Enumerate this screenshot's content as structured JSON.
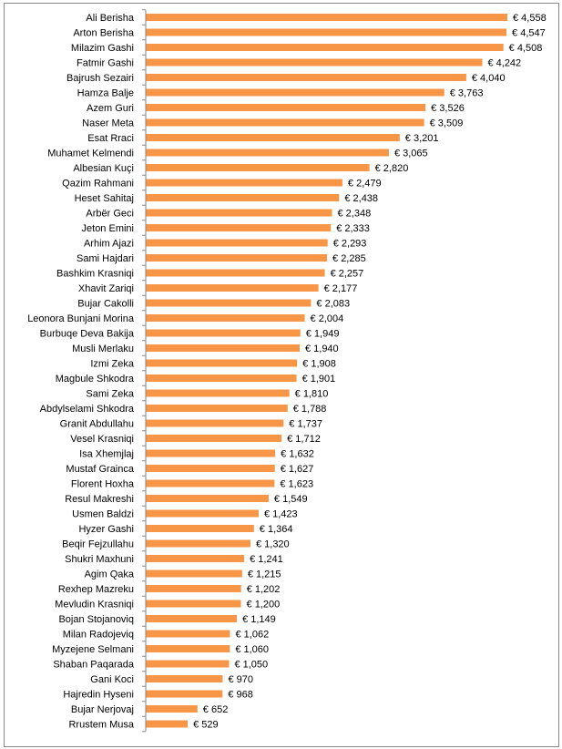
{
  "chart_data": {
    "type": "bar",
    "orientation": "horizontal",
    "title": "",
    "xlabel": "",
    "ylabel": "",
    "currency": "€",
    "grid": false,
    "legend": false,
    "bar_color": "#F79646",
    "xlim": [
      0,
      4800
    ],
    "categories": [
      "Ali Berisha",
      "Arton Berisha",
      "Milazim Gashi",
      "Fatmir Gashi",
      "Bajrush Sezairi",
      "Hamza Balje",
      "Azem Guri",
      "Naser Meta",
      "Esat Rraci",
      "Muhamet Kelmendi",
      "Albesian Kuçi",
      "Qazim Rahmani",
      "Heset Sahitaj",
      "Arbër Geci",
      "Jeton Emini",
      "Arhim Ajazi",
      "Sami Hajdari",
      "Bashkim Krasniqi",
      "Xhavit Zariqi",
      "Bujar Cakolli",
      "Leonora Bunjani Morina",
      "Burbuqe Deva Bakija",
      "Musli Merlaku",
      "Izmi Zeka",
      "Magbule Shkodra",
      "Sami Zeka",
      "Abdylselami Shkodra",
      "Granit Abdullahu",
      "Vesel Krasniqi",
      "Isa Xhemjlaj",
      "Mustaf Grainca",
      "Florent Hoxha",
      "Resul Makreshi",
      "Usmen Baldzi",
      "Hyzer Gashi",
      "Beqir Fejzullahu",
      "Shukri Maxhuni",
      "Agim Qaka",
      "Rexhep Mazreku",
      "Mevludin Krasniqi",
      "Bojan Stojanoviq",
      "Milan Radojeviq",
      "Myzejene Selmani",
      "Shaban Paqarada",
      "Gani Koci",
      "Hajredin Hyseni",
      "Bujar Nerjovaj",
      "Rrustem Musa"
    ],
    "values": [
      4558,
      4547,
      4508,
      4242,
      4040,
      3763,
      3526,
      3509,
      3201,
      3065,
      2820,
      2479,
      2438,
      2348,
      2333,
      2293,
      2285,
      2257,
      2177,
      2083,
      2004,
      1949,
      1940,
      1908,
      1901,
      1810,
      1788,
      1737,
      1712,
      1632,
      1627,
      1623,
      1549,
      1423,
      1364,
      1320,
      1241,
      1215,
      1202,
      1200,
      1149,
      1062,
      1060,
      1050,
      970,
      968,
      652,
      529
    ],
    "value_labels": [
      "€ 4,558",
      "€ 4,547",
      "€ 4,508",
      "€ 4,242",
      "€ 4,040",
      "€ 3,763",
      "€ 3,526",
      "€ 3,509",
      "€ 3,201",
      "€ 3,065",
      "€ 2,820",
      "€ 2,479",
      "€ 2,438",
      "€ 2,348",
      "€ 2,333",
      "€ 2,293",
      "€ 2,285",
      "€ 2,257",
      "€ 2,177",
      "€ 2,083",
      "€ 2,004",
      "€ 1,949",
      "€ 1,940",
      "€ 1,908",
      "€ 1,901",
      "€ 1,810",
      "€ 1,788",
      "€ 1,737",
      "€ 1,712",
      "€ 1,632",
      "€ 1,627",
      "€ 1,623",
      "€ 1,549",
      "€ 1,423",
      "€ 1,364",
      "€ 1,320",
      "€ 1,241",
      "€ 1,215",
      "€ 1,202",
      "€ 1,200",
      "€ 1,149",
      "€ 1,062",
      "€ 1,060",
      "€ 1,050",
      "€ 970",
      "€ 968",
      "€ 652",
      "€ 529"
    ]
  }
}
